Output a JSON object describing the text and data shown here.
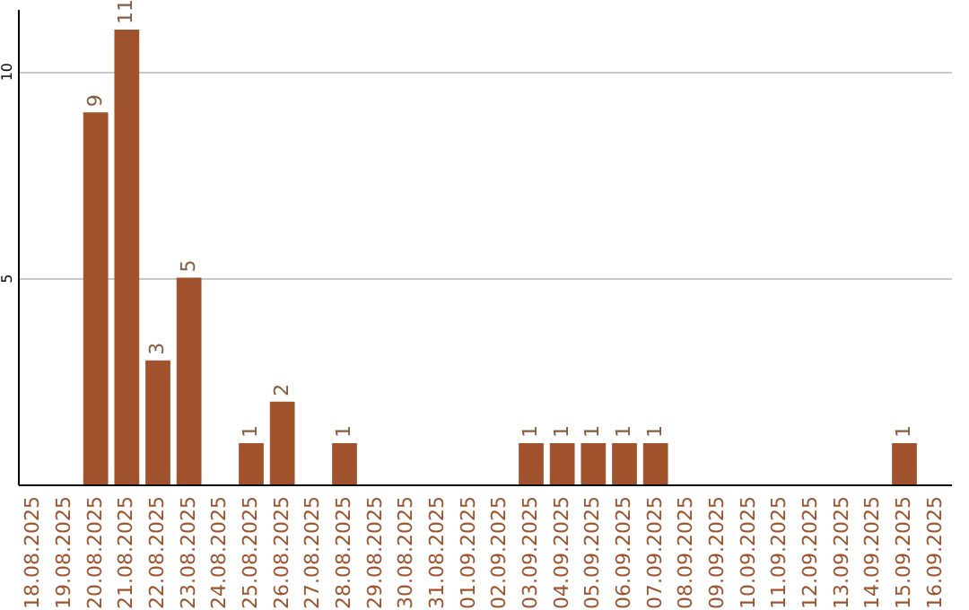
{
  "chart_data": {
    "type": "bar",
    "categories": [
      "18.08.2025",
      "19.08.2025",
      "20.08.2025",
      "21.08.2025",
      "22.08.2025",
      "23.08.2025",
      "24.08.2025",
      "25.08.2025",
      "26.08.2025",
      "27.08.2025",
      "28.08.2025",
      "29.08.2025",
      "30.08.2025",
      "31.08.2025",
      "01.09.2025",
      "02.09.2025",
      "03.09.2025",
      "04.09.2025",
      "05.09.2025",
      "06.09.2025",
      "07.09.2025",
      "08.09.2025",
      "09.09.2025",
      "10.09.2025",
      "11.09.2025",
      "12.09.2025",
      "13.09.2025",
      "14.09.2025",
      "15.09.2025",
      "16.09.2025"
    ],
    "values": [
      0,
      0,
      9,
      11,
      3,
      5,
      0,
      1,
      2,
      0,
      1,
      0,
      0,
      0,
      0,
      0,
      1,
      1,
      1,
      1,
      1,
      0,
      0,
      0,
      0,
      0,
      0,
      0,
      1,
      0
    ],
    "value_labels": [
      null,
      null,
      "9",
      "11",
      "3",
      "5",
      null,
      "1",
      "2",
      null,
      "1",
      null,
      null,
      null,
      null,
      null,
      "1",
      "1",
      "1",
      "1",
      "1",
      null,
      null,
      null,
      null,
      null,
      null,
      null,
      "1",
      null
    ],
    "color": "#a0522d",
    "ylim": [
      0,
      11.5
    ],
    "yticks": [
      5,
      10
    ],
    "grid": "y"
  }
}
